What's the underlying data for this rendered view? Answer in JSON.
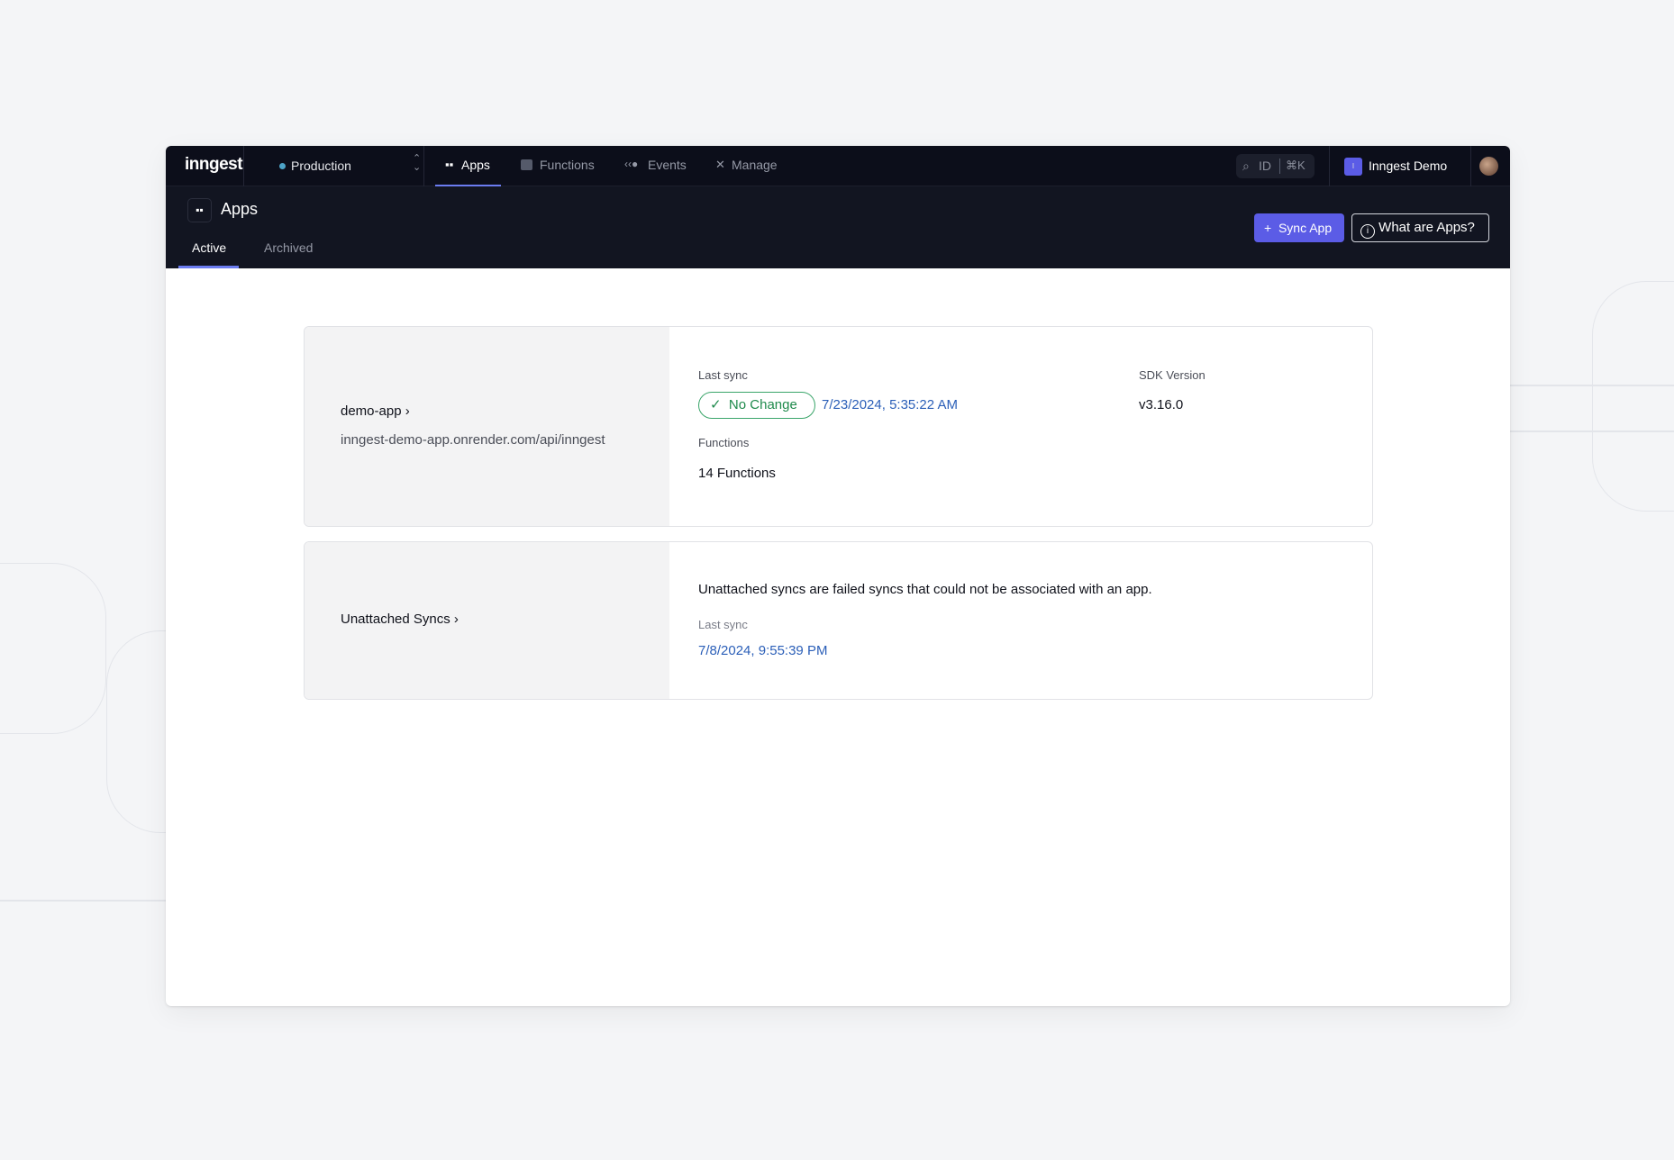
{
  "nav": {
    "logo": "inngest",
    "environment": "Production",
    "env_dot_color": "#4da3c7",
    "items": [
      {
        "label": "Apps",
        "icon": "apps-grid-icon",
        "active": true
      },
      {
        "label": "Functions",
        "icon": "function-icon"
      },
      {
        "label": "Events",
        "icon": "events-icon"
      },
      {
        "label": "Manage",
        "icon": "tools-icon"
      }
    ],
    "search": {
      "label": "ID",
      "shortcut": "⌘K"
    },
    "org": {
      "name": "Inngest Demo",
      "initial": "I",
      "color": "#5b5ce6"
    }
  },
  "header": {
    "title": "Apps",
    "tabs": [
      {
        "label": "Active",
        "active": true
      },
      {
        "label": "Archived"
      }
    ],
    "sync_button": "Sync App",
    "help_button": "What are Apps?",
    "accent": "#5b5ce6"
  },
  "apps": [
    {
      "name": "demo-app",
      "url": "inngest-demo-app.onrender.com/api/inngest",
      "last_sync_label": "Last sync",
      "status": "No Change",
      "status_color": "#1f8a4c",
      "last_sync": "7/23/2024, 5:35:22 AM",
      "sdk_label": "SDK Version",
      "sdk_version": "v3.16.0",
      "functions_label": "Functions",
      "functions": "14 Functions"
    }
  ],
  "unattached": {
    "title": "Unattached Syncs",
    "description": "Unattached syncs are failed syncs that could not be associated with an app.",
    "last_sync_label": "Last sync",
    "last_sync": "7/8/2024, 9:55:39 PM"
  }
}
